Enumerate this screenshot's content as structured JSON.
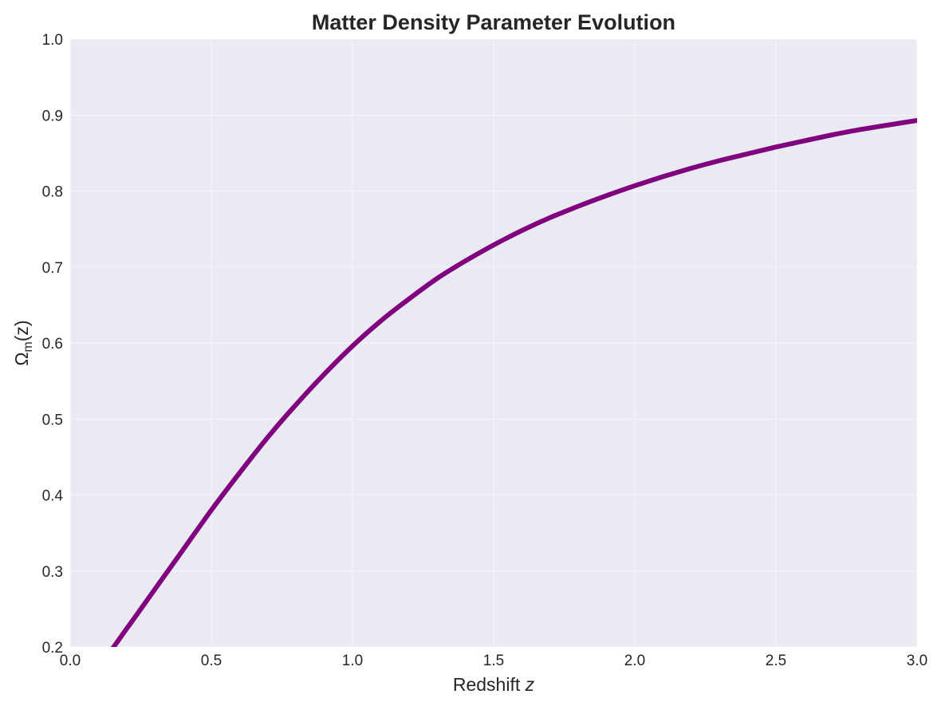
{
  "chart_data": {
    "type": "line",
    "title": "Matter Density Parameter Evolution",
    "xlabel": {
      "text": "Redshift ",
      "italic": "z"
    },
    "ylabel": {
      "main": "Ω",
      "sub": "m",
      "arg": "(z)"
    },
    "xlim": [
      0.0,
      3.0
    ],
    "ylim": [
      0.2,
      1.0
    ],
    "xticks": [
      0.0,
      0.5,
      1.0,
      1.5,
      2.0,
      2.5,
      3.0
    ],
    "xtick_labels": [
      "0.0",
      "0.5",
      "1.0",
      "1.5",
      "2.0",
      "2.5",
      "3.0"
    ],
    "yticks": [
      0.2,
      0.3,
      0.4,
      0.5,
      0.6,
      0.7,
      0.8,
      0.9,
      1.0
    ],
    "ytick_labels": [
      "0.2",
      "0.3",
      "0.4",
      "0.5",
      "0.6",
      "0.7",
      "0.8",
      "0.9",
      "1.0"
    ],
    "grid": true,
    "background_color": "#EAEAF2",
    "series": [
      {
        "color": "#800080",
        "x": [
          0.0,
          0.1,
          0.2,
          0.3,
          0.4,
          0.5,
          0.6,
          0.7,
          0.8,
          0.9,
          1.0,
          1.1,
          1.2,
          1.3,
          1.4,
          1.5,
          1.6,
          1.7,
          1.8,
          1.9,
          2.0,
          2.1,
          2.2,
          2.3,
          2.4,
          2.5,
          2.6,
          2.7,
          2.8,
          2.9,
          3.0
        ],
        "y": [
          0.15,
          0.175,
          0.224,
          0.276,
          0.328,
          0.38,
          0.429,
          0.476,
          0.519,
          0.559,
          0.596,
          0.629,
          0.658,
          0.685,
          0.708,
          0.729,
          0.748,
          0.765,
          0.78,
          0.794,
          0.807,
          0.819,
          0.83,
          0.84,
          0.849,
          0.858,
          0.866,
          0.874,
          0.881,
          0.887,
          0.893
        ]
      }
    ]
  }
}
